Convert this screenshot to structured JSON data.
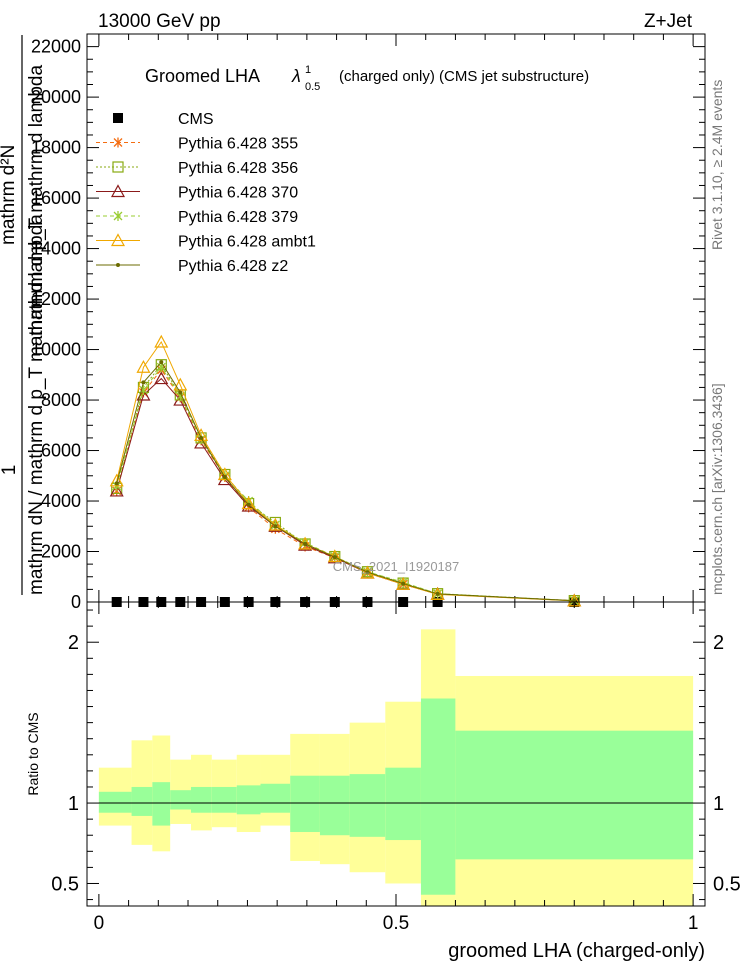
{
  "header": {
    "left": "13000 GeV pp",
    "right": "Z+Jet"
  },
  "side_labels": {
    "rivet": "Rivet 3.1.10, ≥ 2.4M events",
    "mcplots": "mcplots.cern.ch [arXiv:1306.3436]"
  },
  "watermark": "CMS_2021_I1920187",
  "colors": {
    "band_outer": "#ffff99",
    "band_inner": "#99ff99",
    "cms": "#000000"
  },
  "chart_data": [
    {
      "type": "line",
      "title": "Groomed LHA",
      "title_symbol": "λ",
      "title_sup": "1",
      "title_sub": "0.5",
      "title_suffix": "(charged only) (CMS jet substructure)",
      "ylabel_top": "1",
      "ylabel_bottom": "mathrm dN / mathrm d p_T mathrm d lambda",
      "ylabel_overlay_1": "mathrm d²N",
      "ylabel_overlay_2": "mathrm d p_T mathrm d lambda",
      "ylim": [
        0,
        22500
      ],
      "y_ticks": [
        "0",
        "2000",
        "4000",
        "6000",
        "8000",
        "10000",
        "12000",
        "14000",
        "16000",
        "18000",
        "20000",
        "22000"
      ],
      "x": [
        0.03,
        0.075,
        0.105,
        0.137,
        0.172,
        0.212,
        0.252,
        0.297,
        0.347,
        0.397,
        0.452,
        0.512,
        0.57,
        0.8
      ],
      "series": [
        {
          "name": "CMS",
          "marker": "square",
          "color": "#000000",
          "values": [
            0,
            0,
            0,
            0,
            0,
            0,
            0,
            0,
            0,
            0,
            0,
            0,
            0,
            0
          ]
        },
        {
          "name": "Pythia 6.428 355",
          "marker": "star",
          "color": "#f46d11",
          "dash": "4,3",
          "values": [
            4400,
            8300,
            9200,
            8100,
            6400,
            4950,
            3750,
            2900,
            2200,
            1750,
            1150,
            700,
            320,
            50
          ]
        },
        {
          "name": "Pythia 6.428 356",
          "marker": "square-open",
          "color": "#88aa11",
          "dash": "2,2",
          "values": [
            4500,
            8500,
            9400,
            8200,
            6500,
            5050,
            3900,
            3150,
            2300,
            1800,
            1200,
            750,
            330,
            55
          ]
        },
        {
          "name": "Pythia 6.428 370",
          "marker": "triangle-open",
          "color": "#8b1a1a",
          "values": [
            4400,
            8200,
            8850,
            8000,
            6300,
            4850,
            3800,
            3000,
            2250,
            1750,
            1150,
            700,
            310,
            50
          ]
        },
        {
          "name": "Pythia 6.428 379",
          "marker": "star",
          "color": "#9acd32",
          "dash": "4,3",
          "values": [
            4600,
            8400,
            9300,
            8150,
            6450,
            5000,
            4000,
            3050,
            2350,
            1800,
            1200,
            780,
            330,
            55
          ]
        },
        {
          "name": "Pythia 6.428 ambt1",
          "marker": "triangle-open",
          "color": "#f0a800",
          "values": [
            4800,
            9300,
            10300,
            8600,
            6600,
            5050,
            3900,
            3050,
            2300,
            1800,
            1150,
            700,
            300,
            45
          ]
        },
        {
          "name": "Pythia 6.428 z2",
          "marker": "dot",
          "color": "#6b6b00",
          "values": [
            4700,
            8700,
            9500,
            8300,
            6500,
            4950,
            3850,
            3000,
            2300,
            1780,
            1180,
            730,
            320,
            50
          ]
        }
      ]
    },
    {
      "type": "area",
      "ylabel": "Ratio to CMS",
      "xlabel": "groomed LHA (charged-only)",
      "xlim": [
        -0.02,
        1.02
      ],
      "ylim": [
        0.36,
        2.25
      ],
      "x_ticks": [
        "0",
        "0.5",
        "1"
      ],
      "y_ticks": [
        "0.5",
        "1",
        "2"
      ],
      "bins": [
        {
          "x0": 0.0,
          "x1": 0.055,
          "outer": [
            0.86,
            1.22
          ],
          "inner": [
            0.94,
            1.07
          ]
        },
        {
          "x0": 0.055,
          "x1": 0.09,
          "outer": [
            0.74,
            1.39
          ],
          "inner": [
            0.92,
            1.1
          ]
        },
        {
          "x0": 0.09,
          "x1": 0.12,
          "outer": [
            0.7,
            1.42
          ],
          "inner": [
            0.86,
            1.13
          ]
        },
        {
          "x0": 0.12,
          "x1": 0.155,
          "outer": [
            0.87,
            1.27
          ],
          "inner": [
            0.96,
            1.08
          ]
        },
        {
          "x0": 0.155,
          "x1": 0.19,
          "outer": [
            0.83,
            1.3
          ],
          "inner": [
            0.94,
            1.1
          ]
        },
        {
          "x0": 0.19,
          "x1": 0.232,
          "outer": [
            0.85,
            1.27
          ],
          "inner": [
            0.94,
            1.1
          ]
        },
        {
          "x0": 0.232,
          "x1": 0.272,
          "outer": [
            0.82,
            1.3
          ],
          "inner": [
            0.93,
            1.11
          ]
        },
        {
          "x0": 0.272,
          "x1": 0.322,
          "outer": [
            0.86,
            1.3
          ],
          "inner": [
            0.94,
            1.12
          ]
        },
        {
          "x0": 0.322,
          "x1": 0.372,
          "outer": [
            0.64,
            1.43
          ],
          "inner": [
            0.82,
            1.17
          ]
        },
        {
          "x0": 0.372,
          "x1": 0.422,
          "outer": [
            0.62,
            1.43
          ],
          "inner": [
            0.8,
            1.17
          ]
        },
        {
          "x0": 0.422,
          "x1": 0.482,
          "outer": [
            0.57,
            1.5
          ],
          "inner": [
            0.79,
            1.18
          ]
        },
        {
          "x0": 0.482,
          "x1": 0.542,
          "outer": [
            0.5,
            1.63
          ],
          "inner": [
            0.77,
            1.22
          ]
        },
        {
          "x0": 0.542,
          "x1": 0.6,
          "outer": [
            0.36,
            2.08
          ],
          "inner": [
            0.43,
            1.65
          ]
        },
        {
          "x0": 0.6,
          "x1": 1.0,
          "outer": [
            0.36,
            1.79
          ],
          "inner": [
            0.65,
            1.45
          ]
        }
      ]
    }
  ]
}
